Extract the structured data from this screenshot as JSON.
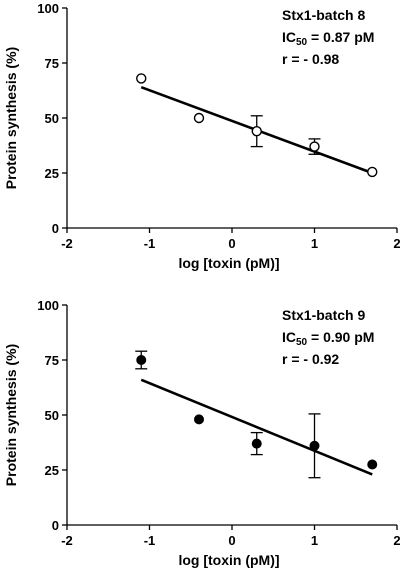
{
  "chart_data": [
    {
      "type": "scatter",
      "xlabel": "log [toxin (pM)]",
      "ylabel": "Protein synthesis (%)",
      "xlim": [
        -2,
        2
      ],
      "ylim": [
        0,
        100
      ],
      "xticks": [
        -2,
        -1,
        0,
        1,
        2
      ],
      "yticks": [
        0,
        25,
        50,
        75,
        100
      ],
      "marker": "open-circle",
      "annotation": {
        "line1": "Stx1-batch  8",
        "ic_main": "IC",
        "ic_sub": "50",
        "ic_value": " = 0.87 pM",
        "line3": "r = - 0.98"
      },
      "points": [
        {
          "x": -1.1,
          "y": 68,
          "err": 0
        },
        {
          "x": -0.4,
          "y": 50,
          "err": 0
        },
        {
          "x": 0.3,
          "y": 44,
          "err": 7
        },
        {
          "x": 1.0,
          "y": 37,
          "err": 3.5
        },
        {
          "x": 1.7,
          "y": 25.5,
          "err": 0
        }
      ],
      "fit_line": {
        "x": [
          -1.1,
          1.7
        ],
        "y": [
          64,
          25
        ]
      }
    },
    {
      "type": "scatter",
      "xlabel": "log [toxin (pM)]",
      "ylabel": "Protein synthesis (%)",
      "xlim": [
        -2,
        2
      ],
      "ylim": [
        0,
        100
      ],
      "xticks": [
        -2,
        -1,
        0,
        1,
        2
      ],
      "yticks": [
        0,
        25,
        50,
        75,
        100
      ],
      "marker": "filled-circle",
      "annotation": {
        "line1": "Stx1-batch 9",
        "ic_main": "IC",
        "ic_sub": "50",
        "ic_value": " = 0.90 pM",
        "line3": "r = - 0.92"
      },
      "points": [
        {
          "x": -1.1,
          "y": 75,
          "err": 4
        },
        {
          "x": -0.4,
          "y": 48,
          "err": 0
        },
        {
          "x": 0.3,
          "y": 37,
          "err": 5
        },
        {
          "x": 1.0,
          "y": 36,
          "err": 14.5
        },
        {
          "x": 1.7,
          "y": 27.5,
          "err": 0
        }
      ],
      "fit_line": {
        "x": [
          -1.1,
          1.7
        ],
        "y": [
          66,
          23
        ]
      }
    }
  ]
}
